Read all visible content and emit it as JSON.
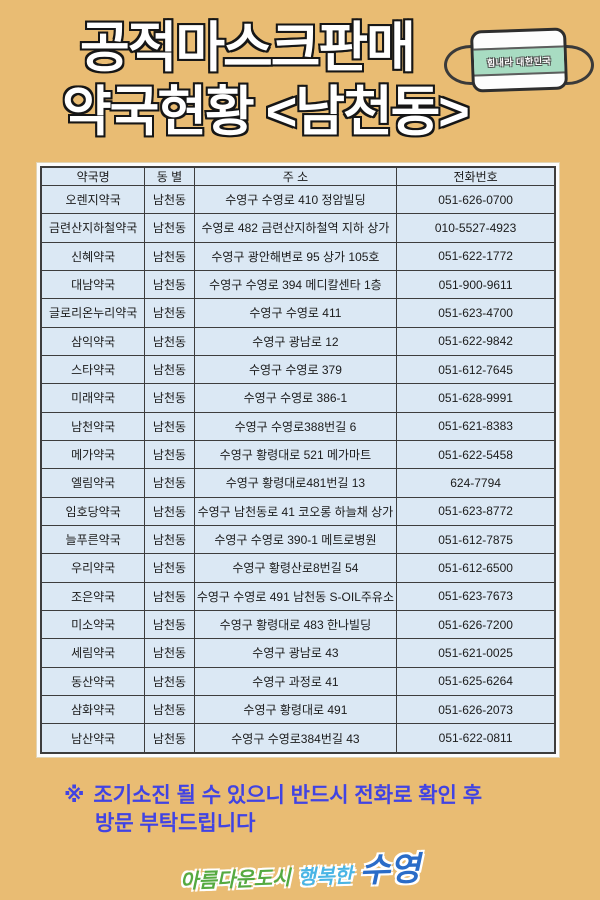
{
  "page": {
    "background_color": "#e9bc73",
    "kind": "public-mask-sales pharmacy status poster"
  },
  "header": {
    "title_line1": "공적마스크판매",
    "title_line2": "약국현황 <남천동>",
    "mask_badge": {
      "label": "힘내라 대한민국",
      "band_color": "#a8dcc2"
    }
  },
  "table": {
    "columns": [
      "약국명",
      "동 별",
      "주 소",
      "전화번호"
    ],
    "rows": [
      [
        "오렌지약국",
        "남천동",
        "수영구 수영로 410 정암빌딩",
        "051-626-0700"
      ],
      [
        "금련산지하철약국",
        "남천동",
        "수영로 482 금련산지하철역 지하 상가",
        "010-5527-4923"
      ],
      [
        "신혜약국",
        "남천동",
        "수영구 광안해변로 95 상가 105호",
        "051-622-1772"
      ],
      [
        "대남약국",
        "남천동",
        "수영구 수영로 394 메디칼센타 1층",
        "051-900-9611"
      ],
      [
        "글로리온누리약국",
        "남천동",
        "수영구 수영로 411",
        "051-623-4700"
      ],
      [
        "삼익약국",
        "남천동",
        "수영구 광남로 12",
        "051-622-9842"
      ],
      [
        "스타약국",
        "남천동",
        "수영구 수영로 379",
        "051-612-7645"
      ],
      [
        "미래약국",
        "남천동",
        "수영구 수영로 386-1",
        "051-628-9991"
      ],
      [
        "남천약국",
        "남천동",
        "수영구 수영로388번길 6",
        "051-621-8383"
      ],
      [
        "메가약국",
        "남천동",
        "수영구 황령대로 521 메가마트",
        "051-622-5458"
      ],
      [
        "엘림약국",
        "남천동",
        "수영구 황령대로481번길 13",
        "624-7794"
      ],
      [
        "임호당약국",
        "남천동",
        "수영구 남천동로 41 코오롱 하늘채 상가",
        "051-623-8772"
      ],
      [
        "늘푸른약국",
        "남천동",
        "수영구 수영로 390-1 메트로병원",
        "051-612-7875"
      ],
      [
        "우리약국",
        "남천동",
        "수영구 황령산로8번길 54",
        "051-612-6500"
      ],
      [
        "조은약국",
        "남천동",
        "수영구 수영로 491 남천동 S-OIL주유소",
        "051-623-7673"
      ],
      [
        "미소약국",
        "남천동",
        "수영구 황령대로 483 한나빌딩",
        "051-626-7200"
      ],
      [
        "세림약국",
        "남천동",
        "수영구 광남로 43",
        "051-621-0025"
      ],
      [
        "동산약국",
        "남천동",
        "수영구 과정로 41",
        "051-625-6264"
      ],
      [
        "삼화약국",
        "남천동",
        "수영구 황령대로 491",
        "051-626-2073"
      ],
      [
        "남산약국",
        "남천동",
        "수영구 수영로384번길 43",
        "051-622-0811"
      ]
    ],
    "cell_background": "#dbe8f4",
    "border_color": "#3d3d3d"
  },
  "notice": {
    "marker": "※",
    "line1": "조기소진 될 수 있으니 반드시 전화로 확인 후",
    "line2": "방문 부탁드립니다",
    "color": "#4143e3"
  },
  "footer_logo": {
    "part1": "아름다운도시",
    "part2": "행복한",
    "part3": "수영",
    "colors": {
      "part1": "#55aa41",
      "part2": "#4ab5e5",
      "part3": "#2a6cc8"
    }
  }
}
